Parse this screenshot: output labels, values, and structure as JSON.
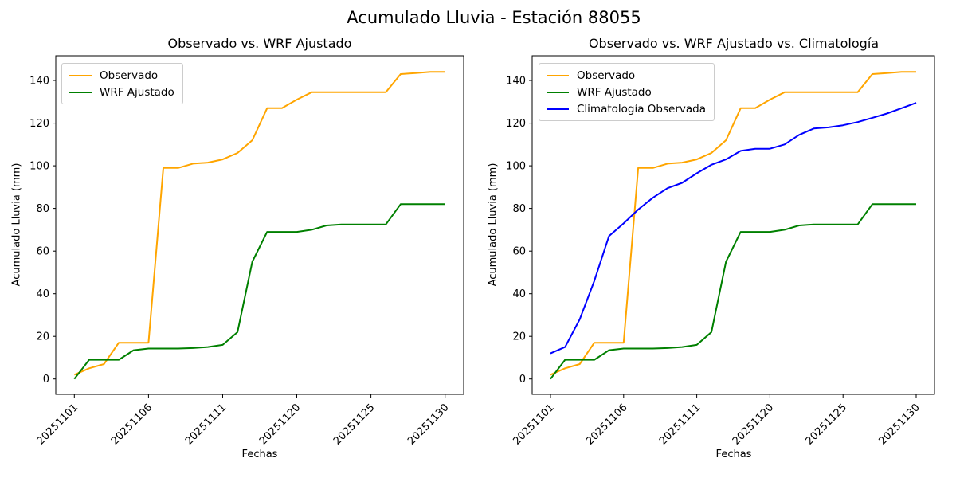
{
  "figure": {
    "title": "Acumulado Lluvia - Estación 88055"
  },
  "chart_data": [
    {
      "type": "line",
      "title": "Observado vs. WRF Ajustado",
      "xlabel": "Fechas",
      "ylabel": "Acumulado Lluvia (mm)",
      "x_tick_positions": [
        0,
        5,
        10,
        15,
        20,
        25
      ],
      "x_tick_labels": [
        "20251101",
        "20251106",
        "20251111",
        "20251120",
        "20251125",
        "20251130"
      ],
      "y_ticks": [
        0,
        20,
        40,
        60,
        80,
        100,
        120,
        140
      ],
      "xlim": [
        -1.25,
        26.25
      ],
      "ylim": [
        -7.2,
        151.6
      ],
      "grid": false,
      "legend_position": "upper left",
      "series": [
        {
          "name": "Observado",
          "color": "#FFA500",
          "values": [
            2,
            5,
            7,
            17,
            17,
            17,
            99,
            99,
            101,
            101.5,
            103,
            106,
            112,
            127,
            127,
            131,
            134.5,
            134.5,
            134.5,
            134.5,
            134.5,
            134.5,
            143,
            143.5,
            144,
            144
          ]
        },
        {
          "name": "WRF Ajustado",
          "color": "#008000",
          "values": [
            0,
            9,
            9,
            9,
            13.5,
            14.3,
            14.3,
            14.3,
            14.5,
            15,
            16,
            22,
            55,
            69,
            69,
            69,
            70,
            72,
            72.5,
            72.5,
            72.5,
            72.5,
            82,
            82,
            82,
            82
          ]
        }
      ]
    },
    {
      "type": "line",
      "title": "Observado vs. WRF Ajustado vs. Climatología",
      "xlabel": "Fechas",
      "ylabel": "Acumulado Lluvia (mm)",
      "x_tick_positions": [
        0,
        5,
        10,
        15,
        20,
        25
      ],
      "x_tick_labels": [
        "20251101",
        "20251106",
        "20251111",
        "20251120",
        "20251125",
        "20251130"
      ],
      "y_ticks": [
        0,
        20,
        40,
        60,
        80,
        100,
        120,
        140
      ],
      "xlim": [
        -1.25,
        26.25
      ],
      "ylim": [
        -7.2,
        151.6
      ],
      "grid": false,
      "legend_position": "upper left",
      "series": [
        {
          "name": "Observado",
          "color": "#FFA500",
          "values": [
            2,
            5,
            7,
            17,
            17,
            17,
            99,
            99,
            101,
            101.5,
            103,
            106,
            112,
            127,
            127,
            131,
            134.5,
            134.5,
            134.5,
            134.5,
            134.5,
            134.5,
            143,
            143.5,
            144,
            144
          ]
        },
        {
          "name": "WRF Ajustado",
          "color": "#008000",
          "values": [
            0,
            9,
            9,
            9,
            13.5,
            14.3,
            14.3,
            14.3,
            14.5,
            15,
            16,
            22,
            55,
            69,
            69,
            69,
            70,
            72,
            72.5,
            72.5,
            72.5,
            72.5,
            82,
            82,
            82,
            82
          ]
        },
        {
          "name": "Climatología Observada",
          "color": "#0000FF",
          "values": [
            12,
            15,
            28,
            46,
            67,
            73,
            79.5,
            85,
            89.5,
            92,
            96.5,
            100.5,
            103,
            107,
            108,
            108,
            110,
            114.5,
            117.5,
            118,
            119,
            120.5,
            122.5,
            124.5,
            127,
            129.5
          ]
        }
      ]
    }
  ]
}
